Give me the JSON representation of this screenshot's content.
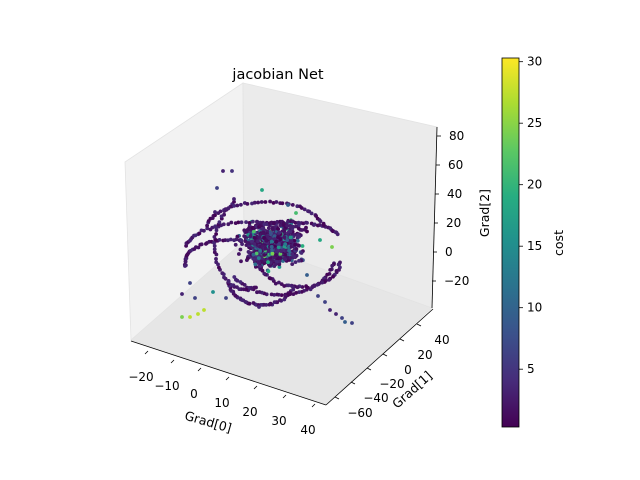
{
  "chart_data": {
    "type": "scatter",
    "title": "jacobian Net",
    "xlabel": "Grad[0]",
    "ylabel": "Grad[1]",
    "zlabel": "Grad[2]",
    "xlim": [
      -27,
      50
    ],
    "ylim": [
      -70,
      48
    ],
    "zlim": [
      -38,
      86
    ],
    "x_ticks": [
      "−20",
      "−10",
      "0",
      "10",
      "20",
      "30",
      "40"
    ],
    "y_ticks": [
      "−60",
      "−40",
      "−20",
      "0",
      "20",
      "40"
    ],
    "z_ticks": [
      "−20",
      "0",
      "20",
      "40",
      "60",
      "80"
    ],
    "colorbar": {
      "label": "cost",
      "range": [
        0.3,
        30.3
      ],
      "ticks": [
        "5",
        "10",
        "15",
        "20",
        "25",
        "30"
      ],
      "colormap": "viridis"
    },
    "grid": false,
    "legend": "none",
    "colors": {
      "pane": "#f2f2f2",
      "low": "#440154",
      "high": "#fde725"
    }
  }
}
